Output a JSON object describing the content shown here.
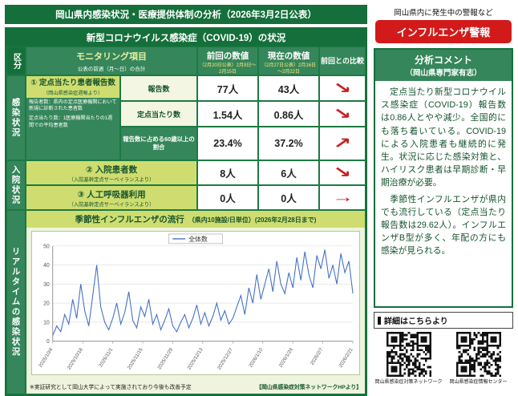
{
  "header": {
    "title": "岡山県内感染状況・医療提供体制の分析（2026年3月2日公表）",
    "alert_caption": "岡山県内に発生中の警報など",
    "alert_badge": "インフルエンザ警報"
  },
  "covid": {
    "panel_title": "新型コロナウイルス感染症（COVID-19）の状況",
    "col_category": "区分",
    "col_monitoring": "モニタリング項目",
    "col_monitoring_sub": "公表の前週（月～日）の合計",
    "col_prev": "前回の数値",
    "col_prev_sub": "（2月20日公表）2月9日～2月15日",
    "col_curr": "現在の数値",
    "col_curr_sub": "（2月27日公表）2月16日～2月22日",
    "col_compare": "前回との比較",
    "section_infection": "感染状況",
    "section_hospital": "入院状況",
    "section_realtime": "リアルタイムの感染状況",
    "item1": {
      "title": "① 定点当たり患者報告数",
      "source": "（岡山県感染症週報より）",
      "note1": "報告者数：県内の定点医療機関において新規に診断された患者数",
      "note2": "定点当たり数：1医療機関当たりの1週間での平均患者数",
      "metrics": [
        {
          "label": "報告数",
          "prev": "77人",
          "curr": "43人",
          "arrow": "↘"
        },
        {
          "label": "定点当たり数",
          "prev": "1.54人",
          "curr": "0.86人",
          "arrow": "↘"
        },
        {
          "label": "報告数に占める60歳以上の割合",
          "prev": "23.4%",
          "curr": "37.2%",
          "arrow": "↗"
        }
      ]
    },
    "item2": {
      "title": "② 入院患者数",
      "source": "（入院基幹定点サーベイランスより）",
      "prev": "8人",
      "curr": "6人",
      "arrow": "↘"
    },
    "item3": {
      "title": "③ 人工呼吸器利用",
      "source": "（入院基幹定点サーベイランスより）",
      "prev": "0人",
      "curr": "0人",
      "arrow": "→"
    },
    "flu": {
      "title": "季節性インフルエンザの流行",
      "subtitle": "（県内10施設/日単位）(2026年2月28日まで)",
      "footnote_left": "※実証研究として岡山大学によって実施されており今後も改善予定",
      "footnote_right": "【岡山県感染症対策ネットワークHPより】"
    }
  },
  "analysis": {
    "title_line1": "分析コメント",
    "title_line2": "（岡山県専門家有志）",
    "paragraph1": "　定点当たり新型コロナウイルス感染症（COVID-19）報告数は0.86人とやや減少。全国的にも落ち着いている。COVID-19による入院患者も継続的に発生。状況に応じた感染対策と、ハイリスク患者は早期診断・早期治療が必要。",
    "paragraph2": "　季節性インフルエンザが県内でも流行している（定点当たり報告数は29.62人）。インフルエンザB型が多く、年配の方にも感染が見られる。",
    "details_label": "詳細はこちらより",
    "qr1_caption": "岡山県感染症対策ネットワーク",
    "qr2_caption": "岡山県感染症情報センター"
  },
  "chart_data": {
    "type": "line",
    "title": "季節性インフルエンザの流行（県内10施設/日単位）",
    "legend": [
      "全体数"
    ],
    "x_tick_labels": [
      "2025/10/4",
      "2025/10/18",
      "2025/11/1",
      "2025/11/15",
      "2025/11/29",
      "2025/12/13",
      "2025/12/27",
      "2026/1/10",
      "2026/1/24",
      "2026/2/7",
      "2026/2/21"
    ],
    "ylim": [
      0,
      50
    ],
    "y_ticks": [
      0,
      10,
      20,
      30,
      40,
      50
    ],
    "values": [
      3,
      8,
      5,
      14,
      9,
      22,
      12,
      30,
      16,
      8,
      24,
      40,
      18,
      10,
      6,
      12,
      20,
      9,
      15,
      26,
      11,
      7,
      18,
      13,
      22,
      9,
      14,
      6,
      11,
      17,
      8,
      5,
      10,
      14,
      7,
      12,
      19,
      9,
      15,
      8,
      13,
      20,
      11,
      16,
      9,
      12,
      18,
      24,
      14,
      28,
      20,
      35,
      22,
      30,
      38,
      26,
      42,
      30,
      25,
      36,
      28,
      44,
      32,
      47,
      35,
      28,
      45,
      38,
      48,
      33,
      40,
      30,
      46,
      36,
      42,
      25
    ],
    "line_color": "#4472c4",
    "grid": true,
    "legend_position": "top"
  },
  "colors": {
    "dark_green": "#156f3b",
    "mid_green": "#35865a",
    "leaf_green": "#cfdd70",
    "alert_red": "#d31a1a",
    "arrow_red": "#c81e1e"
  }
}
